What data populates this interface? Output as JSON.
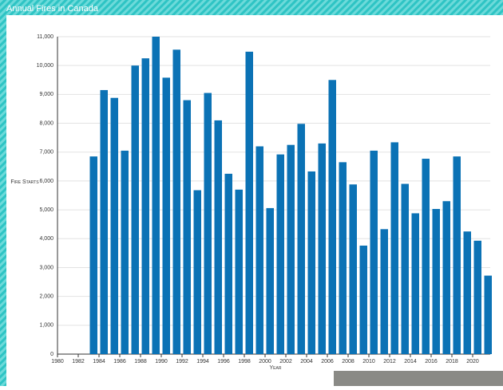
{
  "chart_data": {
    "type": "bar",
    "title": "Annual Fires in Canada",
    "x_label": "Year",
    "y_label": "Fire Starts",
    "x": [
      1983,
      1984,
      1985,
      1986,
      1987,
      1988,
      1989,
      1990,
      1991,
      1992,
      1993,
      1994,
      1995,
      1996,
      1997,
      1998,
      1999,
      2000,
      2001,
      2002,
      2003,
      2004,
      2005,
      2006,
      2007,
      2008,
      2009,
      2010,
      2011,
      2012,
      2013,
      2014,
      2015,
      2016,
      2017,
      2018,
      2019,
      2020,
      2021
    ],
    "values": [
      6850,
      9150,
      8880,
      7050,
      10000,
      10250,
      11000,
      9580,
      10550,
      8800,
      5680,
      9050,
      8100,
      6250,
      5700,
      10480,
      7200,
      5060,
      6920,
      7250,
      7980,
      6330,
      7300,
      9500,
      6650,
      5880,
      3760,
      7050,
      4330,
      7340,
      5900,
      4880,
      6770,
      5030,
      5300,
      6850,
      4250,
      3930,
      2720
    ],
    "color": "#0b72b5",
    "xlim": [
      1980,
      2021.7
    ],
    "xticks": [
      1980,
      1982,
      1984,
      1986,
      1988,
      1990,
      1992,
      1994,
      1996,
      1998,
      2000,
      2002,
      2004,
      2006,
      2008,
      2010,
      2012,
      2014,
      2016,
      2018,
      2020
    ],
    "ylim": [
      0,
      11000
    ],
    "yticks": [
      0,
      {
        "value": 1000,
        "label": "1,000"
      },
      {
        "value": 2000,
        "label": "2,000"
      },
      {
        "value": 3000,
        "label": "3,000"
      },
      {
        "value": 4000,
        "label": "4,000"
      },
      {
        "value": 5000,
        "label": "5,000"
      },
      {
        "value": 6000,
        "label": "6,000"
      },
      {
        "value": 7000,
        "label": "7,000"
      },
      {
        "value": 8000,
        "label": "8,000"
      },
      {
        "value": 9000,
        "label": "9,000"
      },
      {
        "value": 10000,
        "label": "10,000"
      },
      {
        "value": 11000,
        "label": "11,000"
      }
    ],
    "grid": true
  }
}
